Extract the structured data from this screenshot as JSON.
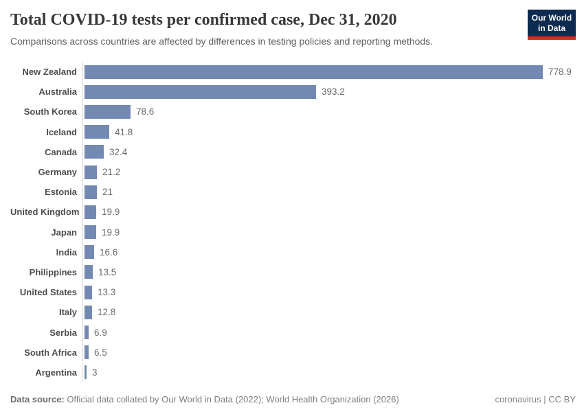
{
  "header": {
    "title": "Total COVID-19 tests per confirmed case, Dec 31, 2020",
    "subtitle": "Comparisons across countries are affected by differences in testing policies and reporting methods.",
    "logo": {
      "line1": "Our World",
      "line2": "in Data"
    }
  },
  "chart_data": {
    "type": "bar",
    "orientation": "horizontal",
    "title": "Total COVID-19 tests per confirmed case, Dec 31, 2020",
    "subtitle": "Comparisons across countries are affected by differences in testing policies and reporting methods.",
    "categories": [
      "New Zealand",
      "Australia",
      "South Korea",
      "Iceland",
      "Canada",
      "Germany",
      "Estonia",
      "United Kingdom",
      "Japan",
      "India",
      "Philippines",
      "United States",
      "Italy",
      "Serbia",
      "South Africa",
      "Argentina"
    ],
    "values": [
      778.9,
      393.2,
      78.6,
      41.8,
      32.4,
      21.2,
      21,
      19.9,
      19.9,
      16.6,
      13.5,
      13.3,
      12.8,
      6.9,
      6.5,
      3
    ],
    "value_labels": [
      "778.9",
      "393.2",
      "78.6",
      "41.8",
      "32.4",
      "21.2",
      "21",
      "19.9",
      "19.9",
      "16.6",
      "13.5",
      "13.3",
      "12.8",
      "6.9",
      "6.5",
      "3"
    ],
    "xlim": [
      0,
      778.9
    ],
    "grid": false,
    "legend": false,
    "bar_color": "#7289b2"
  },
  "footer": {
    "source_label": "Data source:",
    "source_text": "Official data collated by Our World in Data (2022); World Health Organization (2026)",
    "right_text": "coronavirus | CC BY"
  },
  "colors": {
    "bar": "#7289b2",
    "logo_navy": "#0d2b50",
    "logo_red": "#d52b1e",
    "axis_line": "#dcdcdc",
    "title_text": "#383838"
  }
}
